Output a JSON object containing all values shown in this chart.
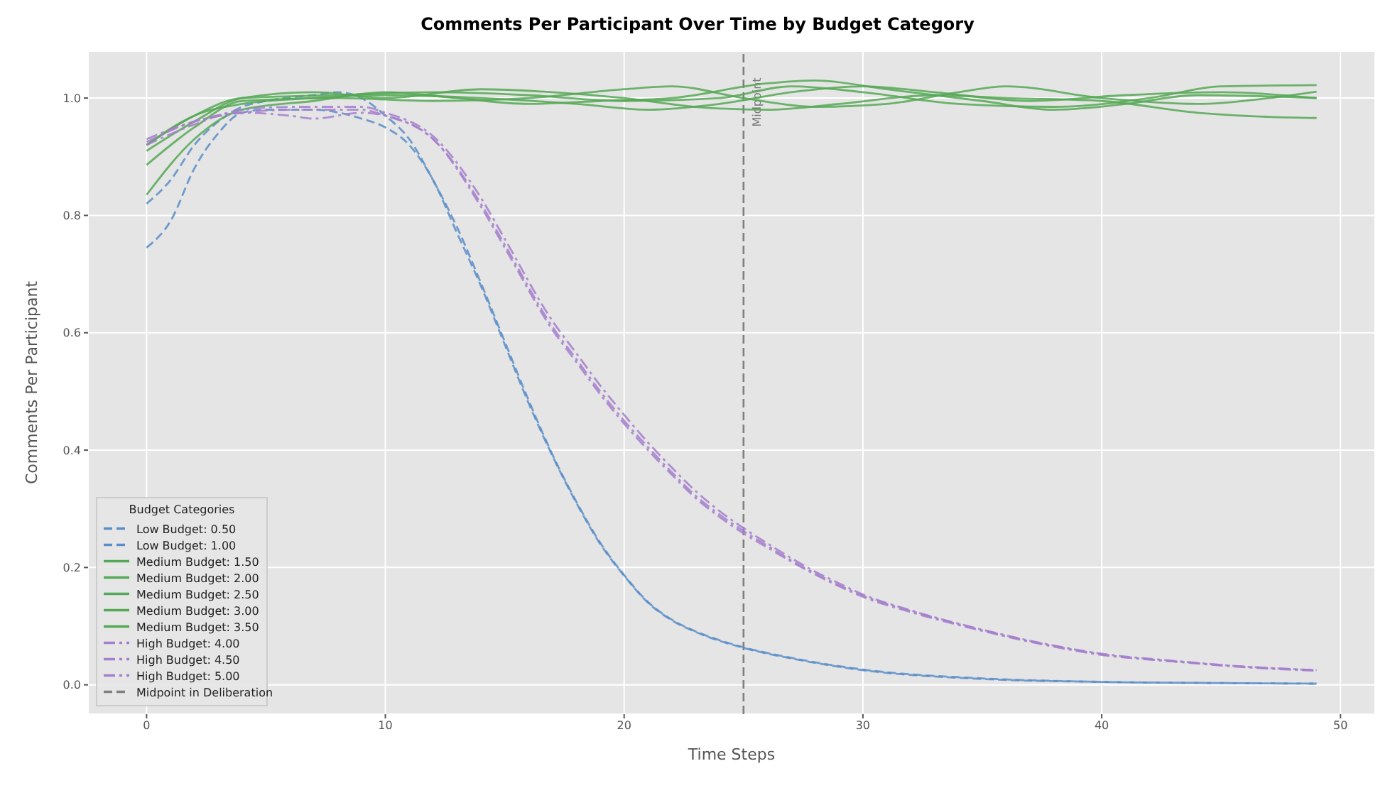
{
  "chart_data": {
    "type": "line",
    "title": "Comments Per Participant Over Time by Budget Category",
    "xlabel": "Time Steps",
    "ylabel": "Comments Per Participant",
    "legend_title": "Budget Categories",
    "legend": "bottom left",
    "grid": true,
    "marker": "none",
    "xlim": [
      -2.45,
      51.45
    ],
    "ylim": [
      -0.05,
      1.08
    ],
    "xticks": [
      0,
      10,
      20,
      30,
      40,
      50
    ],
    "yticks": [
      {
        "value": 0,
        "label": "0.0"
      },
      {
        "value": 0.2,
        "label": "0.2"
      },
      {
        "value": 0.4,
        "label": "0.4"
      },
      {
        "value": 0.6,
        "label": "0.6"
      },
      {
        "value": 0.8,
        "label": "0.8"
      },
      {
        "value": 1,
        "label": "1.0"
      }
    ],
    "series": [
      {
        "name": "Low Budget: 0.50",
        "color": "#5b8ec8",
        "line_style": "dashed",
        "x": [
          0,
          1,
          2,
          3,
          4,
          5,
          7,
          9,
          10,
          11,
          12,
          13,
          14,
          15,
          16,
          17,
          18,
          19,
          20,
          21,
          22,
          23,
          24,
          25,
          27,
          30,
          35,
          40,
          45,
          49
        ],
        "values": [
          0.745,
          0.79,
          0.88,
          0.94,
          0.975,
          0.98,
          0.98,
          0.965,
          0.95,
          0.92,
          0.86,
          0.77,
          0.68,
          0.58,
          0.48,
          0.39,
          0.31,
          0.24,
          0.186,
          0.14,
          0.11,
          0.09,
          0.075,
          0.063,
          0.045,
          0.025,
          0.01,
          0.005,
          0.003,
          0.002
        ]
      },
      {
        "name": "Low Budget: 1.00",
        "color": "#5b8ec8",
        "line_style": "dashed",
        "x": [
          0,
          1,
          2,
          3,
          4,
          5,
          7,
          8,
          9,
          10,
          11,
          12,
          13,
          14,
          15,
          16,
          17,
          18,
          19,
          20,
          21,
          22,
          23,
          24,
          25,
          27,
          30,
          35,
          40,
          45,
          49
        ],
        "values": [
          0.82,
          0.86,
          0.92,
          0.96,
          0.985,
          0.995,
          1.005,
          1.01,
          1.0,
          0.97,
          0.93,
          0.86,
          0.78,
          0.685,
          0.585,
          0.485,
          0.392,
          0.312,
          0.242,
          0.187,
          0.141,
          0.111,
          0.091,
          0.076,
          0.064,
          0.046,
          0.026,
          0.011,
          0.005,
          0.003,
          0.002
        ]
      },
      {
        "name": "Medium Budget: 1.50",
        "color": "#55a855",
        "line_style": "solid",
        "x": [
          0,
          2,
          4,
          8,
          12,
          16,
          20,
          24,
          27,
          30,
          34,
          38,
          42,
          45,
          49
        ],
        "values": [
          0.92,
          0.97,
          1.0,
          1.005,
          1.01,
          1.005,
          0.995,
          1.0,
          1.02,
          1.01,
          0.99,
          0.985,
          1.0,
          1.02,
          1.022
        ]
      },
      {
        "name": "Medium Budget: 2.00",
        "color": "#55a855",
        "line_style": "solid",
        "x": [
          0,
          2,
          4,
          8,
          12,
          16,
          20,
          22,
          25,
          28,
          31,
          34,
          36,
          40,
          44,
          47,
          49
        ],
        "values": [
          0.886,
          0.95,
          0.995,
          1.0,
          0.995,
          1.0,
          1.015,
          1.02,
          1.0,
          0.985,
          0.99,
          1.01,
          1.02,
          1.0,
          0.99,
          1.0,
          1.011
        ]
      },
      {
        "name": "Medium Budget: 2.50",
        "color": "#55a855",
        "line_style": "solid",
        "x": [
          0,
          2,
          4,
          7,
          10,
          13,
          16,
          19,
          22,
          26,
          28,
          31,
          35,
          38,
          41,
          44,
          49
        ],
        "values": [
          0.835,
          0.93,
          0.98,
          0.995,
          1.01,
          1.0,
          0.99,
          0.995,
          1.0,
          1.025,
          1.03,
          1.015,
          0.995,
          0.98,
          0.99,
          1.005,
          1.0
        ]
      },
      {
        "name": "Medium Budget: 3.00",
        "color": "#55a855",
        "line_style": "solid",
        "x": [
          0,
          2,
          4,
          7,
          10,
          14,
          17,
          20,
          23,
          26,
          29,
          33,
          36,
          40,
          44,
          47,
          49
        ],
        "values": [
          0.91,
          0.96,
          1.0,
          1.01,
          1.0,
          1.015,
          1.01,
          1.0,
          0.985,
          0.98,
          0.99,
          1.005,
          1.0,
          0.995,
          0.975,
          0.968,
          0.966
        ]
      },
      {
        "name": "Medium Budget: 3.50",
        "color": "#55a855",
        "line_style": "solid",
        "x": [
          0,
          2,
          4,
          7,
          10,
          14,
          18,
          21,
          24,
          27,
          30,
          33,
          37,
          41,
          45,
          49
        ],
        "values": [
          0.92,
          0.97,
          0.99,
          1.0,
          1.005,
          1.0,
          0.99,
          0.98,
          0.99,
          1.01,
          1.02,
          1.01,
          0.995,
          1.005,
          1.01,
          1.0
        ]
      },
      {
        "name": "High Budget: 4.00",
        "color": "#a57fcc",
        "line_style": "dashdot",
        "x": [
          0,
          2,
          4,
          6,
          7,
          9,
          10,
          12,
          14,
          15,
          17,
          18,
          19,
          20,
          21,
          22,
          23,
          24,
          25,
          26,
          27,
          28,
          29,
          30,
          32,
          35,
          38,
          40,
          43,
          46,
          49
        ],
        "values": [
          0.925,
          0.96,
          0.975,
          0.97,
          0.965,
          0.975,
          0.97,
          0.93,
          0.82,
          0.75,
          0.61,
          0.555,
          0.5,
          0.45,
          0.405,
          0.362,
          0.322,
          0.29,
          0.262,
          0.237,
          0.212,
          0.19,
          0.17,
          0.152,
          0.126,
          0.093,
          0.066,
          0.052,
          0.04,
          0.031,
          0.025
        ]
      },
      {
        "name": "High Budget: 4.50",
        "color": "#a57fcc",
        "line_style": "dashdot",
        "x": [
          0,
          2,
          4,
          6,
          7,
          9,
          10,
          12,
          14,
          15,
          17,
          18,
          19,
          20,
          21,
          22,
          23,
          24,
          25,
          26,
          27,
          28,
          29,
          30,
          32,
          35,
          38,
          40,
          43,
          46,
          49
        ],
        "values": [
          0.92,
          0.955,
          0.98,
          0.985,
          0.985,
          0.985,
          0.975,
          0.935,
          0.83,
          0.76,
          0.62,
          0.565,
          0.51,
          0.46,
          0.413,
          0.37,
          0.33,
          0.296,
          0.267,
          0.241,
          0.216,
          0.193,
          0.173,
          0.154,
          0.127,
          0.094,
          0.067,
          0.053,
          0.041,
          0.031,
          0.025
        ]
      },
      {
        "name": "High Budget: 5.00",
        "color": "#a57fcc",
        "line_style": "dashdot",
        "x": [
          0,
          2,
          4,
          6,
          7,
          9,
          10,
          12,
          14,
          15,
          17,
          18,
          19,
          20,
          21,
          22,
          23,
          24,
          25,
          26,
          27,
          28,
          29,
          30,
          32,
          35,
          38,
          40,
          43,
          46,
          49
        ],
        "values": [
          0.93,
          0.96,
          0.975,
          0.98,
          0.98,
          0.98,
          0.97,
          0.93,
          0.815,
          0.745,
          0.605,
          0.55,
          0.495,
          0.445,
          0.4,
          0.358,
          0.318,
          0.286,
          0.258,
          0.234,
          0.21,
          0.188,
          0.168,
          0.15,
          0.124,
          0.092,
          0.065,
          0.051,
          0.04,
          0.03,
          0.024
        ]
      }
    ],
    "ref_lines": [
      {
        "axis": "x",
        "value": 25,
        "label": "Midpoint",
        "color": "#808080",
        "line_style": "dashed"
      }
    ],
    "annotations": [
      "Midpoint in Deliberation"
    ]
  }
}
